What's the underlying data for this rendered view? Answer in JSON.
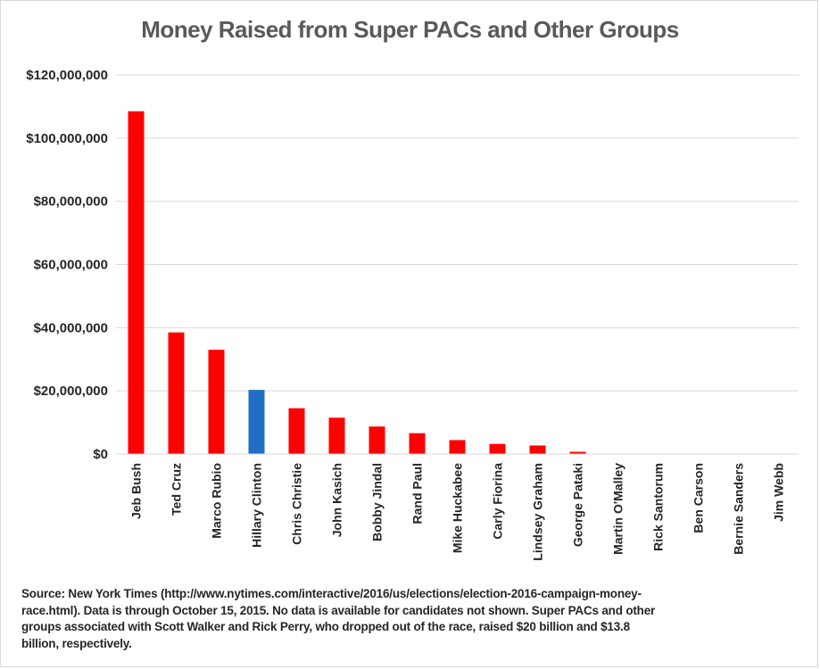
{
  "chart_data": {
    "type": "bar",
    "title": "Money Raised from Super PACs and Other Groups",
    "xlabel": "",
    "ylabel": "",
    "ylim": [
      0,
      120000000
    ],
    "yticks": [
      0,
      20000000,
      40000000,
      60000000,
      80000000,
      100000000,
      120000000
    ],
    "ytick_labels": [
      "$0",
      "$20,000,000",
      "$40,000,000",
      "$60,000,000",
      "$80,000,000",
      "$100,000,000",
      "$120,000,000"
    ],
    "grid": true,
    "categories": [
      "Jeb Bush",
      "Ted Cruz",
      "Marco Rubio",
      "Hillary Clinton",
      "Chris Christie",
      "John Kasich",
      "Bobby Jindal",
      "Rand Paul",
      "Mike Huckabee",
      "Carly Fiorina",
      "Lindsey Graham",
      "George Pataki",
      "Martin O'Malley",
      "Rick Santorum",
      "Ben Carson",
      "Bernie Sanders",
      "Jim Webb"
    ],
    "values": [
      108500000,
      38500000,
      33000000,
      20300000,
      14500000,
      11500000,
      8700000,
      6600000,
      4400000,
      3200000,
      2700000,
      700000,
      0,
      0,
      0,
      0,
      0
    ],
    "bar_colors": [
      "#ff0000",
      "#ff0000",
      "#ff0000",
      "#1f6fc5",
      "#ff0000",
      "#ff0000",
      "#ff0000",
      "#ff0000",
      "#ff0000",
      "#ff0000",
      "#ff0000",
      "#ff0000",
      "#ff0000",
      "#ff0000",
      "#ff0000",
      "#ff0000",
      "#ff0000"
    ]
  },
  "source_note": "Source: New York Times (http://www.nytimes.com/interactive/2016/us/elections/election-2016-campaign-money-race.html). Data is through October 15, 2015. No data is available for candidates not shown. Super PACs and other groups associated with Scott Walker and Rick Perry, who dropped out of the race, raised $20 billion and $13.8 billion, respectively."
}
